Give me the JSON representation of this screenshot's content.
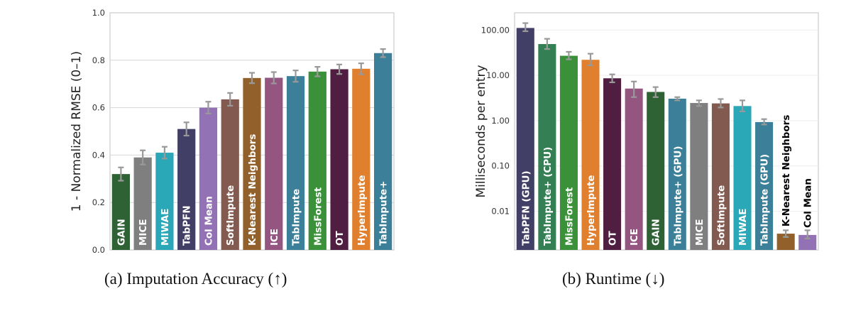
{
  "chart_data": [
    {
      "type": "bar",
      "caption": "(a) Imputation Accuracy (↑)",
      "ylabel": "1 - Normalized RMSE (0–1)",
      "ylim": [
        0,
        1.0
      ],
      "yticks": [
        "0.0",
        "0.2",
        "0.4",
        "0.6",
        "0.8",
        "1.0"
      ],
      "grid": true,
      "categories": [
        "GAIN",
        "MICE",
        "MIWAE",
        "TabPFN",
        "Col Mean",
        "SoftImpute",
        "K-Nearest Neighbors",
        "ICE",
        "TabImpute",
        "MissForest",
        "OT",
        "HyperImpute",
        "TabImpute+"
      ],
      "values": [
        0.32,
        0.39,
        0.41,
        0.51,
        0.6,
        0.635,
        0.725,
        0.726,
        0.733,
        0.752,
        0.762,
        0.764,
        0.83
      ],
      "errors": [
        0.028,
        0.03,
        0.025,
        0.028,
        0.025,
        0.027,
        0.022,
        0.024,
        0.024,
        0.02,
        0.02,
        0.023,
        0.017
      ],
      "colors": [
        "#2e6235",
        "#7f7f7f",
        "#2aa8b8",
        "#413f65",
        "#9371b5",
        "#835a50",
        "#91602b",
        "#955581",
        "#3c7f99",
        "#3a913a",
        "#4f1e40",
        "#e07f2e",
        "#3c7f99"
      ]
    },
    {
      "type": "bar",
      "caption": "(b) Runtime (↓)",
      "ylabel": "Milliseconds per entry",
      "yscale": "log",
      "ylim": [
        0.0014,
        240
      ],
      "yticks": [
        "0.01",
        "0.10",
        "1.00",
        "10.00",
        "100.00"
      ],
      "grid": true,
      "categories": [
        "TabPFN (GPU)",
        "TabImpute+ (CPU)",
        "MissForest",
        "HyperImpute",
        "OT",
        "ICE",
        "GAIN",
        "TabImpute+ (GPU)",
        "MICE",
        "SoftImpute",
        "MIWAE",
        "TabImpute (GPU)",
        "K-Nearest Neighbors",
        "Col Mean"
      ],
      "values": [
        111,
        49,
        27,
        22,
        8.6,
        5.1,
        4.3,
        3.05,
        2.45,
        2.4,
        2.1,
        0.93,
        0.0032,
        0.003
      ],
      "err_low": [
        94,
        38,
        22.5,
        16.5,
        7.0,
        3.3,
        3.3,
        2.8,
        2.1,
        1.95,
        1.6,
        0.82,
        0.0027,
        0.0025
      ],
      "err_high": [
        142,
        64,
        33,
        30,
        10.5,
        7.3,
        5.5,
        3.3,
        2.8,
        3.0,
        2.8,
        1.08,
        0.0038,
        0.0038
      ],
      "colors": [
        "#413f65",
        "#357f55",
        "#3a913a",
        "#e07f2e",
        "#4f1e40",
        "#955581",
        "#2e6235",
        "#3c7f99",
        "#7f7f7f",
        "#835a50",
        "#2aa8b8",
        "#3c7f99",
        "#91602b",
        "#9371b5"
      ],
      "outside_labels": [
        "K-Nearest Neighbors",
        "Col Mean"
      ]
    }
  ]
}
